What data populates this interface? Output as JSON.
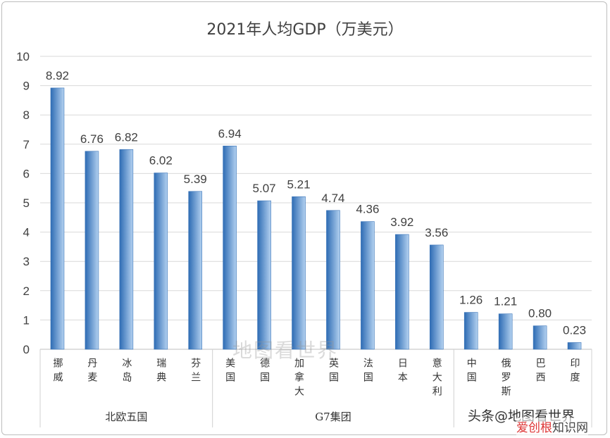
{
  "chart_data": {
    "type": "bar",
    "title": "2021年人均GDP（万美元）",
    "categories": [
      "挪威",
      "丹麦",
      "冰岛",
      "瑞典",
      "芬兰",
      "美国",
      "德国",
      "加拿大",
      "英国",
      "法国",
      "日本",
      "意大利",
      "中国",
      "俄罗斯",
      "巴西",
      "印度"
    ],
    "values": [
      8.92,
      6.76,
      6.82,
      6.02,
      5.39,
      6.94,
      5.07,
      5.21,
      4.74,
      4.36,
      3.92,
      3.56,
      1.26,
      1.21,
      0.8,
      0.23
    ],
    "data_labels": [
      "8.92",
      "6.76",
      "6.82",
      "6.02",
      "5.39",
      "6.94",
      "5.07",
      "5.21",
      "4.74",
      "4.36",
      "3.92",
      "3.56",
      "1.26",
      "1.21",
      "0.80",
      "0.23"
    ],
    "groups": [
      {
        "label": "北欧五国",
        "count": 5
      },
      {
        "label": "G7集团",
        "count": 7
      },
      {
        "label": "",
        "count": 4
      }
    ],
    "ylim": [
      0,
      10
    ],
    "yticks": [
      "0",
      "1",
      "2",
      "3",
      "4",
      "5",
      "6",
      "7",
      "8",
      "9",
      "10"
    ],
    "grid": true,
    "xlabel": "",
    "ylabel": "",
    "bar_color_dark": "#2e6cb4",
    "bar_color_light": "#b3d1f0"
  },
  "watermarks": {
    "center": "地图看世界",
    "corner": "头条@地图看世界",
    "site_a": "爱创根",
    "site_b": "知识网"
  }
}
